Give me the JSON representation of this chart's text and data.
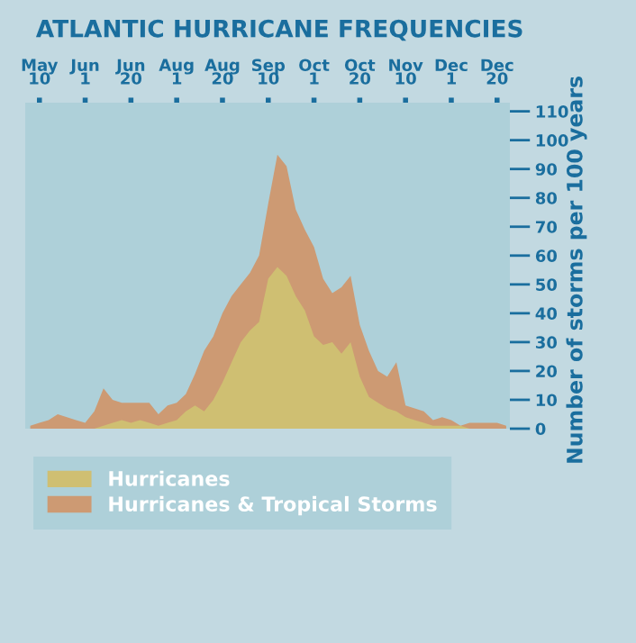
{
  "chart_data": {
    "type": "area",
    "title": "ATLANTIC HURRICANE FREQUENCIES",
    "ylabel": "Number of storms per 100 years",
    "ylim": [
      0,
      113
    ],
    "categories": [
      null,
      "May\n10",
      null,
      null,
      null,
      null,
      "Jun\n1",
      null,
      null,
      null,
      null,
      "Jun\n20",
      null,
      null,
      null,
      null,
      "Aug\n1",
      null,
      null,
      null,
      null,
      "Aug\n20",
      null,
      null,
      null,
      null,
      "Sep\n10",
      null,
      null,
      null,
      null,
      "Oct\n1",
      null,
      null,
      null,
      null,
      "Oct\n20",
      null,
      null,
      null,
      null,
      "Nov\n10",
      null,
      null,
      null,
      null,
      "Dec\n1",
      null,
      null,
      null,
      null,
      "Dec\n20",
      null
    ],
    "yticks": [
      0,
      10,
      20,
      30,
      40,
      50,
      60,
      70,
      80,
      90,
      100,
      110
    ],
    "grid": false,
    "legend": "bottom",
    "series": [
      {
        "name": "Hurricanes & Tropical Storms",
        "color": "#cd9a73",
        "values": [
          1,
          2,
          3,
          5,
          4,
          3,
          2,
          6,
          14,
          10,
          9,
          9,
          9,
          9,
          5,
          8,
          9,
          12,
          19,
          27,
          32,
          40,
          46,
          50,
          54,
          60,
          78,
          95,
          91,
          76,
          69,
          63,
          52,
          47,
          49,
          53,
          36,
          27,
          20,
          18,
          23,
          8,
          7,
          6,
          3,
          4,
          3,
          1,
          2,
          2,
          2,
          2,
          1
        ]
      },
      {
        "name": "Hurricanes",
        "color": "#cfbf72",
        "values": [
          0,
          0,
          0,
          0,
          0,
          0,
          0,
          0,
          1,
          2,
          3,
          2,
          3,
          2,
          1,
          2,
          3,
          6,
          8,
          6,
          10,
          16,
          23,
          30,
          34,
          37,
          52,
          56,
          53,
          46,
          41,
          32,
          29,
          30,
          26,
          30,
          18,
          11,
          9,
          7,
          6,
          4,
          3,
          2,
          1,
          1,
          1,
          1,
          0,
          0,
          0,
          0,
          0
        ]
      }
    ]
  }
}
